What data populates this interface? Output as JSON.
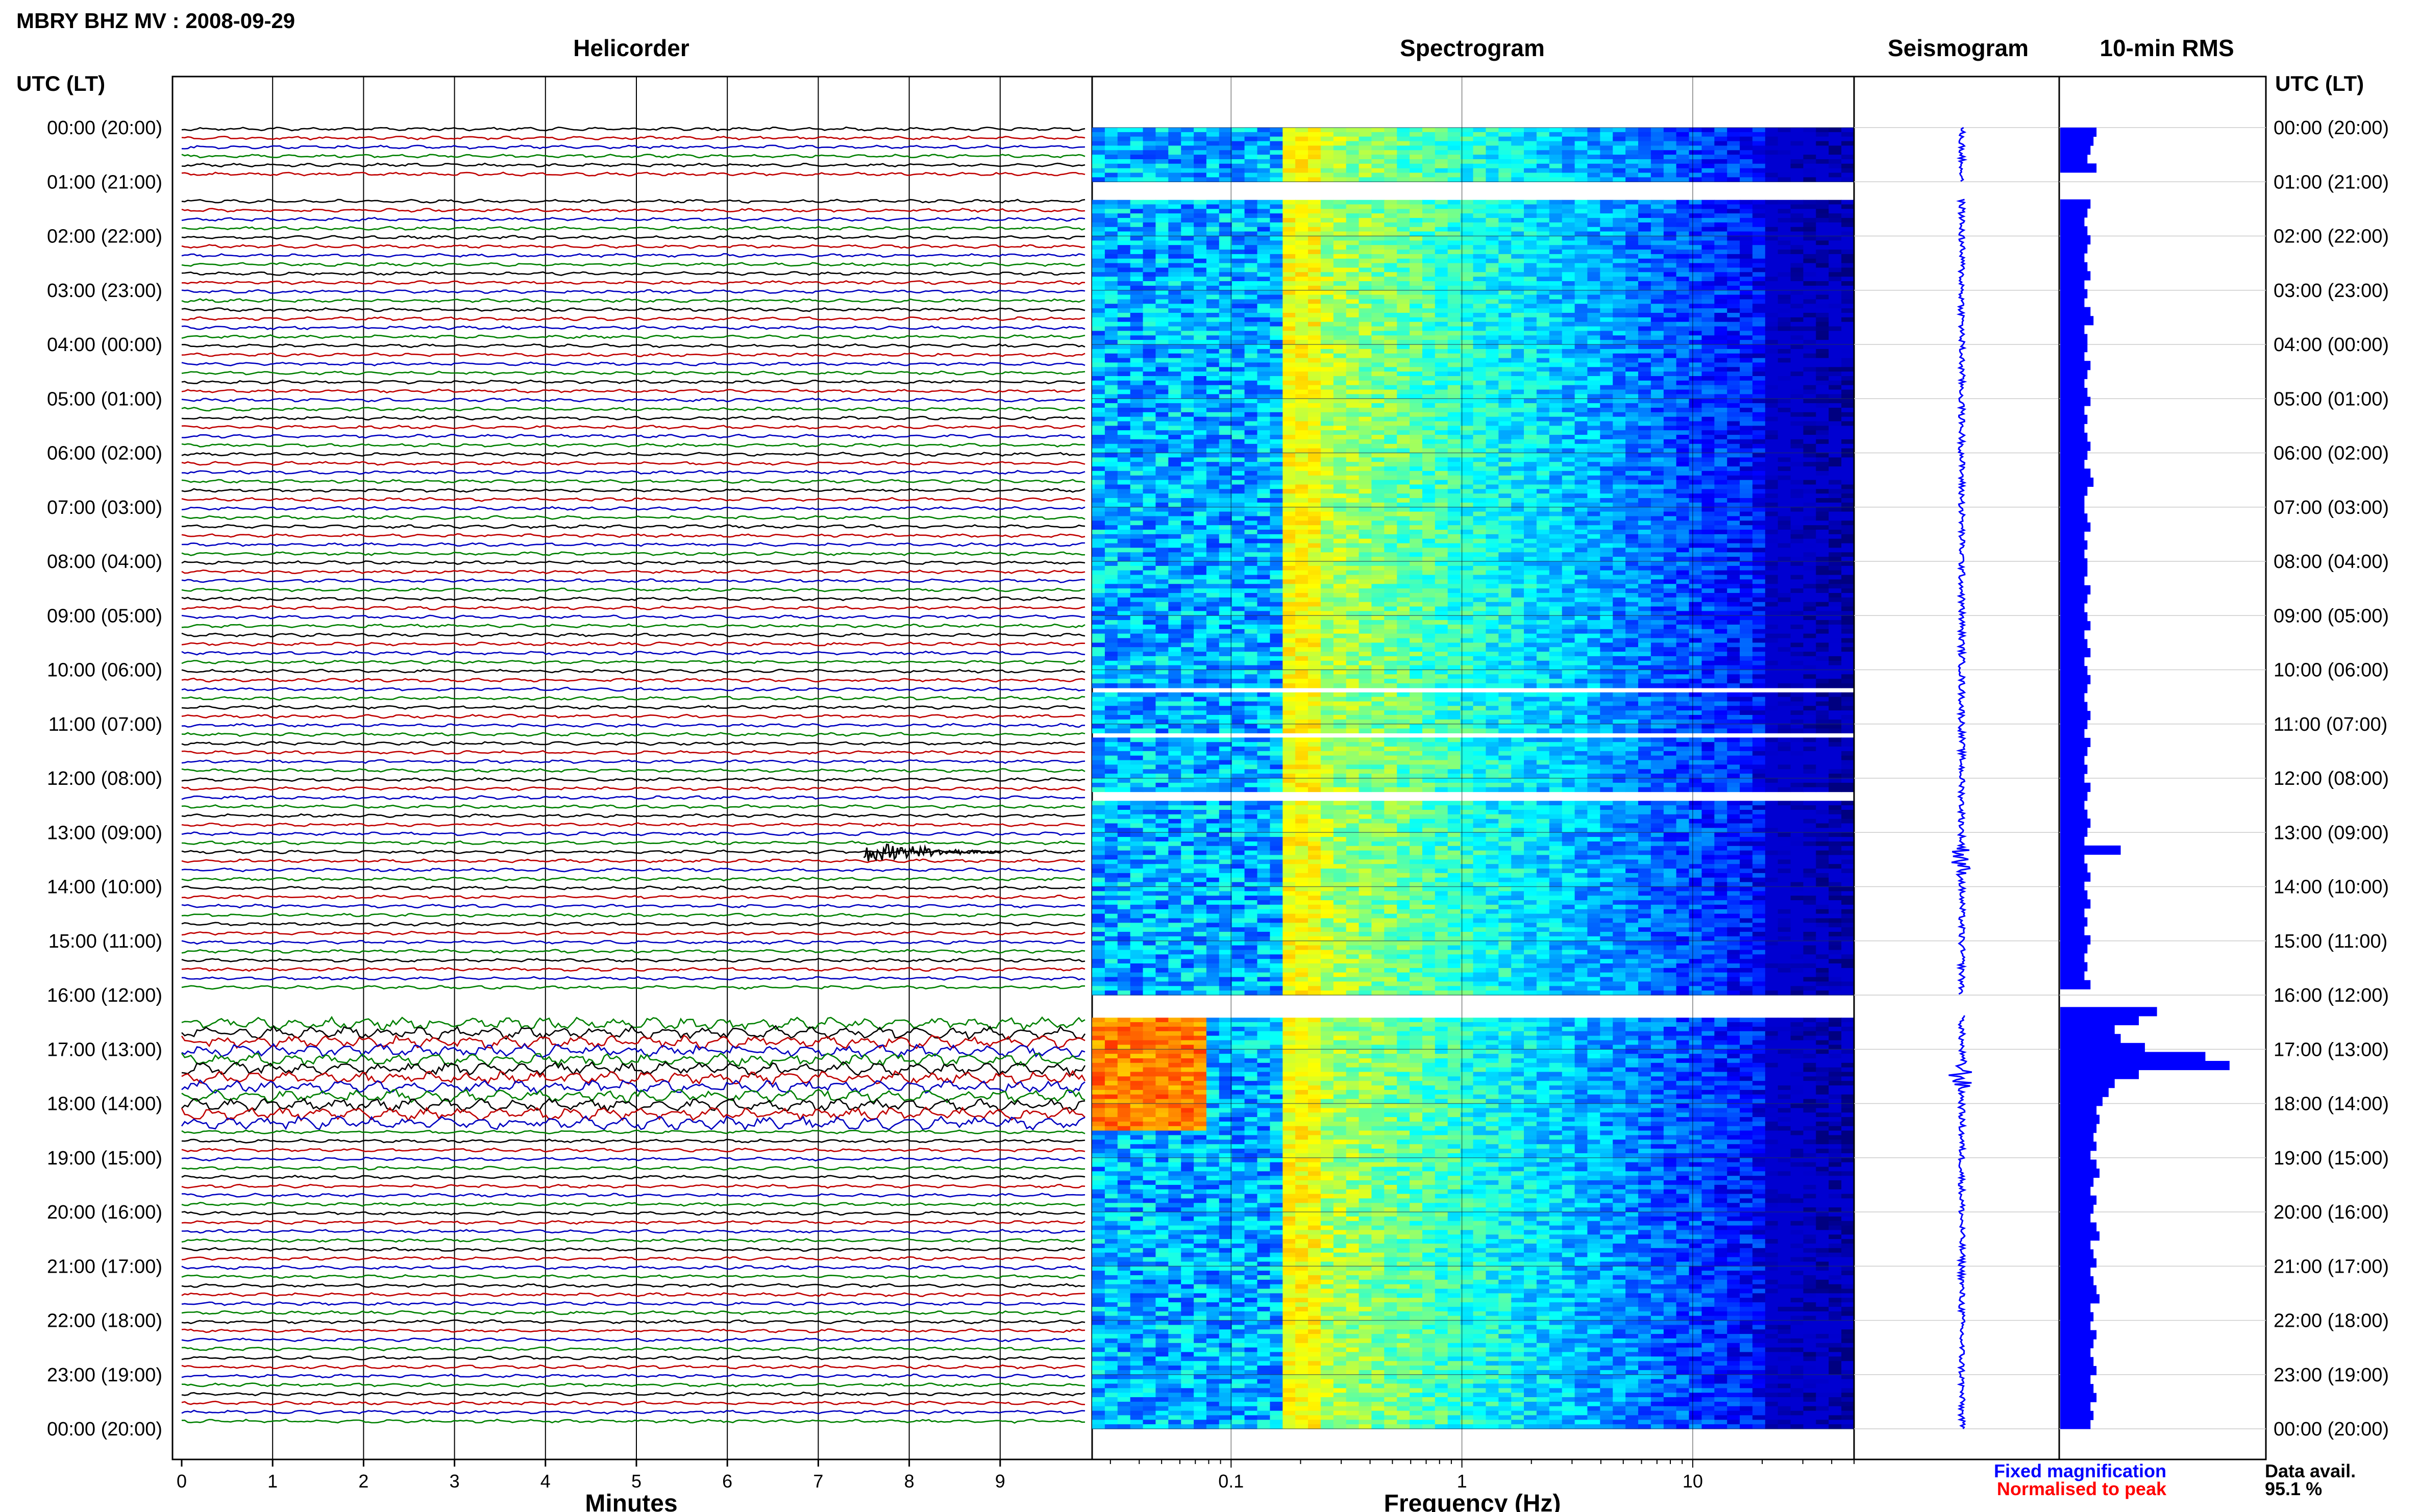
{
  "title": "MBRY BHZ MV : 2008-09-29",
  "time_header": "UTC (LT)",
  "panels": {
    "helicorder": "Helicorder",
    "spectrogram": "Spectrogram",
    "seismogram": "Seismogram",
    "rms": "10-min RMS"
  },
  "time_labels": [
    "00:00 (20:00)",
    "01:00 (21:00)",
    "02:00 (22:00)",
    "03:00 (23:00)",
    "04:00 (00:00)",
    "05:00 (01:00)",
    "06:00 (02:00)",
    "07:00 (03:00)",
    "08:00 (04:00)",
    "09:00 (05:00)",
    "10:00 (06:00)",
    "11:00 (07:00)",
    "12:00 (08:00)",
    "13:00 (09:00)",
    "14:00 (10:00)",
    "15:00 (11:00)",
    "16:00 (12:00)",
    "17:00 (13:00)",
    "18:00 (14:00)",
    "19:00 (15:00)",
    "20:00 (16:00)",
    "21:00 (17:00)",
    "22:00 (18:00)",
    "23:00 (19:00)",
    "00:00 (20:00)"
  ],
  "helicorder_x": {
    "label": "Minutes",
    "ticks": [
      "0",
      "1",
      "2",
      "3",
      "4",
      "5",
      "6",
      "7",
      "8",
      "9"
    ],
    "range": [
      0,
      10
    ]
  },
  "spectrogram_x": {
    "label": "Frequency (Hz)",
    "ticks": [
      "0.1",
      "1",
      "10"
    ],
    "scale": "log",
    "range": [
      0.025,
      50
    ]
  },
  "legend": {
    "fixed": "Fixed magnification",
    "normalised": "Normalised to peak",
    "fixed_color": "#0000ff",
    "normalised_color": "#ff0000"
  },
  "data_avail": {
    "label": "Data avail.",
    "value": "95.1 %"
  },
  "colors": {
    "trace_cycle": [
      "#000000",
      "#c00000",
      "#0000c0",
      "#008000"
    ],
    "spectrogram_low": "#00007a",
    "spectrogram_high": "#ffff00",
    "seismogram": "#0000ff",
    "rms": "#0000ff"
  },
  "chart_data": [
    {
      "type": "heatmap",
      "name": "Helicorder",
      "x_unit": "Minutes",
      "x_range": [
        0,
        10
      ],
      "rows_per_hour": 6,
      "gaps_hours": [
        [
          1.0,
          1.3
        ],
        [
          16.0,
          16.35
        ]
      ],
      "events": [
        {
          "hour": 13.3,
          "minute": 7.5,
          "duration_min": 1.5
        }
      ]
    },
    {
      "type": "heatmap",
      "name": "Spectrogram",
      "x_unit": "Frequency (Hz)",
      "x_scale": "log",
      "x_range": [
        0.025,
        50
      ],
      "peak_band_hz": [
        0.18,
        0.22
      ],
      "gaps_hours": [
        [
          1.0,
          1.3
        ],
        [
          10.3,
          10.4
        ],
        [
          10.6,
          10.65
        ],
        [
          11.1,
          11.2
        ],
        [
          11.45,
          11.5
        ],
        [
          12.2,
          12.35
        ],
        [
          16.0,
          16.35
        ]
      ],
      "high_energy_low_freq": {
        "hours": [
          16.4,
          18.5
        ],
        "freq_hz": [
          0.025,
          0.08
        ]
      }
    },
    {
      "type": "line",
      "name": "Seismogram",
      "events_hours": [
        13.5,
        17.5
      ]
    },
    {
      "type": "bar",
      "name": "10-min RMS",
      "orientation": "horizontal",
      "bin_minutes": 10,
      "values": [
        0.6,
        0.55,
        0.5,
        0.45,
        0.6,
        0,
        0,
        0,
        0.5,
        0.45,
        0.4,
        0.45,
        0.5,
        0.45,
        0.4,
        0.45,
        0.5,
        0.4,
        0.45,
        0.4,
        0.5,
        0.55,
        0.4,
        0.45,
        0.45,
        0.4,
        0.5,
        0.45,
        0.4,
        0.45,
        0.5,
        0.4,
        0.45,
        0.4,
        0.45,
        0.5,
        0.45,
        0.4,
        0.5,
        0.55,
        0.45,
        0.4,
        0.4,
        0.45,
        0.5,
        0.4,
        0.45,
        0.4,
        0.45,
        0.45,
        0.4,
        0.5,
        0.45,
        0.4,
        0.45,
        0.5,
        0.4,
        0.45,
        0.5,
        0.4,
        0.45,
        0.5,
        0.45,
        0.4,
        0.45,
        0.5,
        0.45,
        0.4,
        0.5,
        0.45,
        0.4,
        0.45,
        0.4,
        0.5,
        0.45,
        0.4,
        0.45,
        0.5,
        0.45,
        0.4,
        1.0,
        0.4,
        0.45,
        0.5,
        0.4,
        0.45,
        0.5,
        0.4,
        0.45,
        0.4,
        0.5,
        0.45,
        0.4,
        0.45,
        0.4,
        0.5,
        0,
        0,
        1.6,
        1.3,
        0.9,
        1.0,
        1.4,
        2.4,
        2.8,
        1.3,
        0.9,
        0.8,
        0.7,
        0.6,
        0.65,
        0.6,
        0.55,
        0.6,
        0.5,
        0.6,
        0.65,
        0.55,
        0.5,
        0.6,
        0.55,
        0.5,
        0.6,
        0.65,
        0.5,
        0.55,
        0.6,
        0.5,
        0.55,
        0.6,
        0.65,
        0.5,
        0.55,
        0.5,
        0.6,
        0.55,
        0.5,
        0.55,
        0.6,
        0.5,
        0.55,
        0.6,
        0.5,
        0.55,
        0.5
      ],
      "xlim": [
        0,
        3
      ]
    }
  ]
}
